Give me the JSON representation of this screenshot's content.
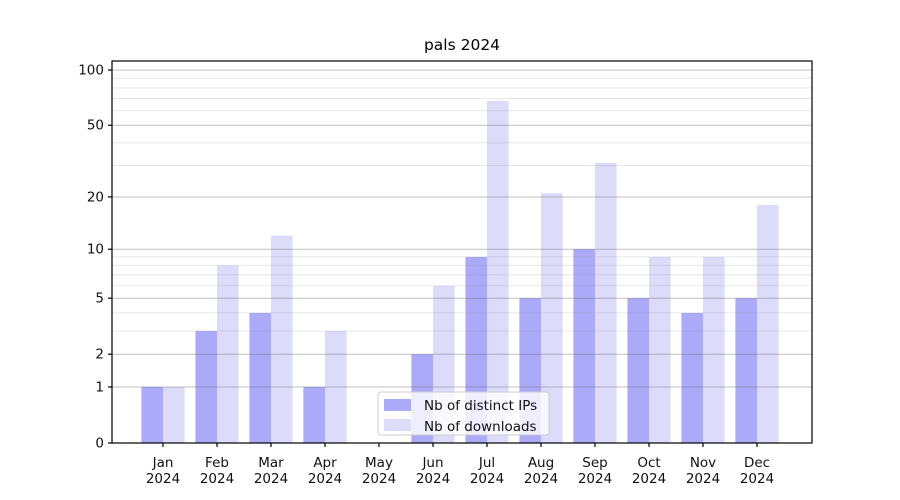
{
  "title": "pals 2024",
  "legend": {
    "items": [
      {
        "label": "Nb of distinct IPs",
        "color": "#aaaaf8"
      },
      {
        "label": "Nb of downloads",
        "color": "#dcdcfa"
      }
    ]
  },
  "colors": {
    "bar_ips": "#aaaaf8",
    "bar_downloads": "#dcdcfa",
    "axis": "#000000",
    "grid_major": "#c8c8c8",
    "grid_minor": "#eaeaea",
    "legend_border": "#cccccc",
    "legend_bg": "rgba(255,255,255,0.8)",
    "text": "#111111"
  },
  "chart_data": {
    "type": "bar",
    "title": "pals 2024",
    "xlabel": "",
    "ylabel": "",
    "categories": [
      "Jan 2024",
      "Feb 2024",
      "Mar 2024",
      "Apr 2024",
      "May 2024",
      "Jun 2024",
      "Jul 2024",
      "Aug 2024",
      "Sep 2024",
      "Oct 2024",
      "Nov 2024",
      "Dec 2024"
    ],
    "series": [
      {
        "name": "Nb of distinct IPs",
        "color": "#aaaaf8",
        "values": [
          1,
          3,
          4,
          1,
          0,
          2,
          9,
          5,
          10,
          5,
          4,
          5
        ]
      },
      {
        "name": "Nb of downloads",
        "color": "#dcdcfa",
        "values": [
          1,
          8,
          12,
          3,
          0,
          6,
          68,
          21,
          31,
          9,
          9,
          18
        ]
      }
    ],
    "yscale": "log1p",
    "yticks": [
      0,
      1,
      2,
      5,
      10,
      20,
      50,
      100
    ],
    "minor_yticks": [
      3,
      4,
      6,
      7,
      8,
      9,
      30,
      40,
      60,
      70,
      80,
      90
    ],
    "ylim": [
      0,
      112
    ],
    "grid": true,
    "grid_above_bars": true,
    "legend_position": "lower-center"
  }
}
